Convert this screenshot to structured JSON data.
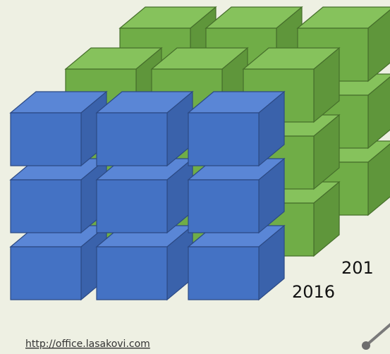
{
  "labels": {
    "year_partial": "201",
    "year": "2016"
  },
  "link": "http://office.lasakovi.com"
}
